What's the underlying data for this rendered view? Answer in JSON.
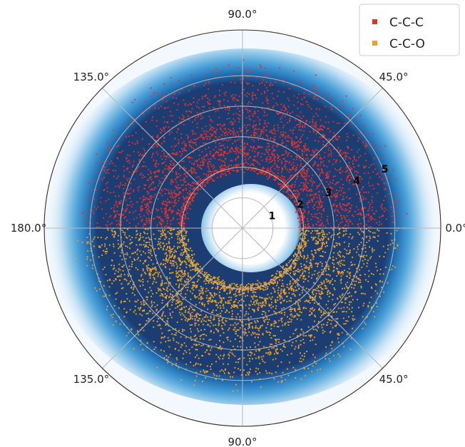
{
  "chart_data": {
    "type": "scatter",
    "projection": "polar",
    "title": "",
    "angle_tick_labels": [
      {
        "angle": 0,
        "label": "0.0°"
      },
      {
        "angle": 45,
        "label": "45.0°"
      },
      {
        "angle": 90,
        "label": "90.0°"
      },
      {
        "angle": 135,
        "label": "135.0°"
      },
      {
        "angle": 180,
        "label": "180.0°"
      },
      {
        "angle": 225,
        "label": "135.0°"
      },
      {
        "angle": 270,
        "label": "90.0°"
      },
      {
        "angle": 315,
        "label": "45.0°"
      }
    ],
    "radial_tick_labels": [
      {
        "r": 1,
        "label": "1"
      },
      {
        "r": 2,
        "label": "2"
      },
      {
        "r": 3,
        "label": "3"
      },
      {
        "r": 4,
        "label": "4"
      },
      {
        "r": 5,
        "label": "5"
      }
    ],
    "rlim": [
      0,
      6.5
    ],
    "grid": true,
    "legend_position": "top-right",
    "density_background": {
      "colormap": "Blues",
      "dense_color": "#1c3d72",
      "inner_hole_r": 1.2,
      "dense_r_range": [
        1.35,
        4.9
      ],
      "halo_outer_r": 5.8
    },
    "series": [
      {
        "name": "C-C-C",
        "color": "#e8302a",
        "angle_range_deg": [
          0,
          180
        ],
        "r_range": [
          1.6,
          5.9
        ],
        "approx_points": 3000
      },
      {
        "name": "C-C-O",
        "color": "#f0a020",
        "angle_range_deg": [
          180,
          360
        ],
        "r_range": [
          1.5,
          5.9
        ],
        "approx_points": 3000
      }
    ]
  }
}
